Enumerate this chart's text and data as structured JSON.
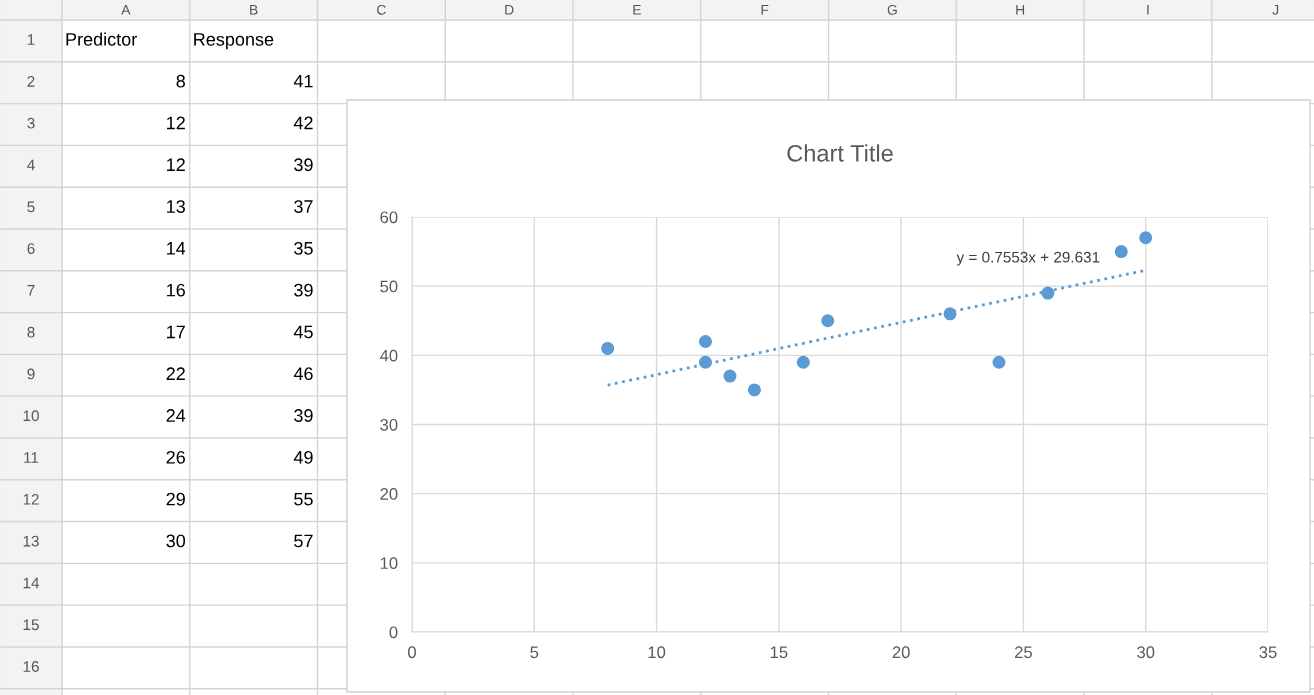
{
  "chart_data": [
    {
      "type": "heatmap",
      "categories": [
        "A",
        "B",
        "C",
        "D",
        "E",
        "F",
        "G",
        "H",
        "I",
        "J"
      ],
      "y_categories": [
        "1",
        "2",
        "3",
        "4",
        "5",
        "6",
        "7",
        "8",
        "9",
        "10",
        "11",
        "12",
        "13",
        "14",
        "15",
        "16"
      ],
      "cells": [
        [
          null,
          null,
          null,
          null,
          null,
          null,
          null,
          null,
          null,
          null
        ],
        [
          null,
          null,
          null,
          null,
          null,
          null,
          null,
          null,
          null,
          null
        ],
        [
          null,
          null,
          null,
          null,
          null,
          null,
          null,
          null,
          null,
          null
        ],
        [
          null,
          null,
          null,
          null,
          null,
          null,
          null,
          null,
          null,
          null
        ],
        [
          null,
          null,
          null,
          null,
          null,
          null,
          null,
          null,
          null,
          null
        ],
        [
          null,
          null,
          null,
          null,
          null,
          null,
          null,
          null,
          null,
          null
        ],
        [
          null,
          null,
          null,
          null,
          null,
          null,
          null,
          null,
          null,
          null
        ],
        [
          null,
          null,
          null,
          null,
          null,
          null,
          null,
          null,
          null,
          null
        ],
        [
          null,
          null,
          null,
          null,
          null,
          null,
          null,
          null,
          null,
          null
        ],
        [
          null,
          null,
          null,
          null,
          null,
          null,
          null,
          null,
          null,
          null
        ],
        [
          null,
          null,
          null,
          null,
          null,
          null,
          null,
          null,
          null,
          null
        ],
        [
          null,
          null,
          null,
          null,
          null,
          null,
          null,
          null,
          null,
          null
        ],
        [
          null,
          null,
          null,
          null,
          null,
          null,
          null,
          null,
          null,
          null
        ],
        [
          null,
          null,
          null,
          null,
          null,
          null,
          null,
          null,
          null,
          null
        ],
        [
          null,
          null,
          null,
          null,
          null,
          null,
          null,
          null,
          null,
          null
        ],
        [
          null,
          null,
          null,
          null,
          null,
          null,
          null,
          null,
          null,
          null
        ]
      ],
      "cell_labels": [
        [
          "Predictor",
          "Response",
          null,
          null,
          null,
          null,
          null,
          null,
          null,
          null
        ],
        [
          "8",
          "41",
          null,
          null,
          null,
          null,
          null,
          null,
          null,
          null
        ],
        [
          "12",
          "42",
          null,
          null,
          null,
          null,
          null,
          null,
          null,
          null
        ],
        [
          "12",
          "39",
          null,
          null,
          null,
          null,
          null,
          null,
          null,
          null
        ],
        [
          "13",
          "37",
          null,
          null,
          null,
          null,
          null,
          null,
          null,
          null
        ],
        [
          "14",
          "35",
          null,
          null,
          null,
          null,
          null,
          null,
          null,
          null
        ],
        [
          "16",
          "39",
          null,
          null,
          null,
          null,
          null,
          null,
          null,
          null
        ],
        [
          "17",
          "45",
          null,
          null,
          null,
          null,
          null,
          null,
          null,
          null
        ],
        [
          "22",
          "46",
          null,
          null,
          null,
          null,
          null,
          null,
          null,
          null
        ],
        [
          "24",
          "39",
          null,
          null,
          null,
          null,
          null,
          null,
          null,
          null
        ],
        [
          "26",
          "49",
          null,
          null,
          null,
          null,
          null,
          null,
          null,
          null
        ],
        [
          "29",
          "55",
          null,
          null,
          null,
          null,
          null,
          null,
          null,
          null
        ],
        [
          "30",
          "57",
          null,
          null,
          null,
          null,
          null,
          null,
          null,
          null
        ],
        [
          null,
          null,
          null,
          null,
          null,
          null,
          null,
          null,
          null,
          null
        ],
        [
          null,
          null,
          null,
          null,
          null,
          null,
          null,
          null,
          null,
          null
        ],
        [
          null,
          null,
          null,
          null,
          null,
          null,
          null,
          null,
          null,
          null
        ]
      ]
    },
    {
      "type": "scatter",
      "title": "Chart Title",
      "x": [
        8,
        12,
        12,
        13,
        14,
        16,
        17,
        22,
        24,
        26,
        29,
        30
      ],
      "series": [
        {
          "color": "#5b9bd5",
          "values": [
            41,
            42,
            39,
            37,
            35,
            39,
            45,
            46,
            39,
            49,
            55,
            57
          ]
        },
        {
          "type": "line",
          "color": "#5b9bd5",
          "x": [
            8,
            30
          ],
          "values": [
            35.7,
            52.3
          ],
          "line_style": "dotted",
          "marker": "none"
        }
      ],
      "marker": "circle",
      "xlim": [
        0,
        35
      ],
      "xticks": [
        0,
        5,
        10,
        15,
        20,
        25,
        30,
        35
      ],
      "ylim": [
        0,
        60
      ],
      "yticks": [
        0,
        10,
        20,
        30,
        40,
        50,
        60
      ],
      "grid": true,
      "annotations": [
        "y = 0.7553x + 29.631"
      ]
    }
  ]
}
